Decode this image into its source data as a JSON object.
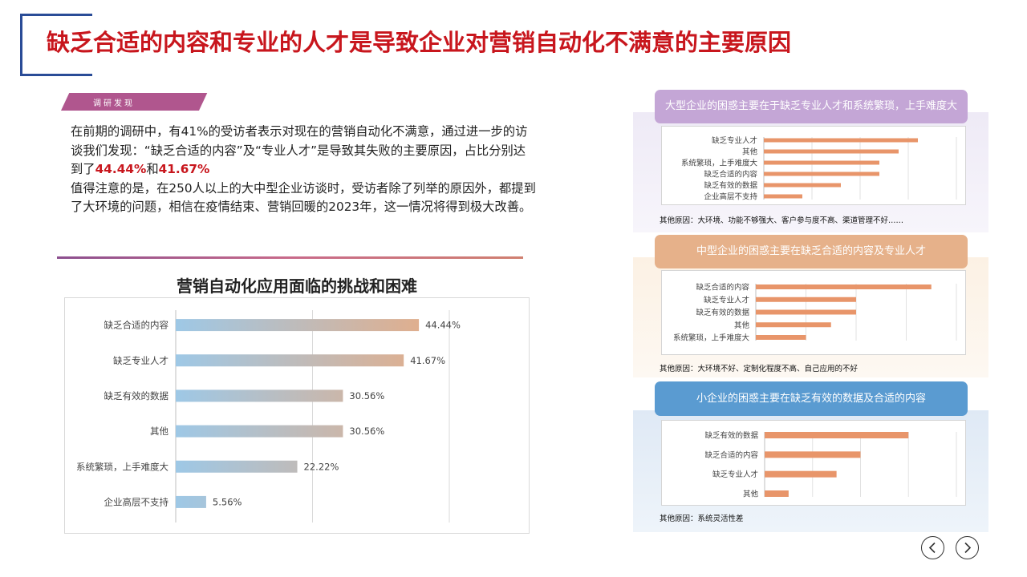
{
  "page": {
    "title": "缺乏合适的内容和专业的人才是导致企业对营销自动化不满意的主要原因",
    "tag": "调研发现"
  },
  "intro": {
    "p1_a": "在前期的调研中，有41%的受访者表示对现在的营销自动化不满意，通过进一步的访谈我们发现：“缺乏合适的内容”及“专业人才”是导致其失败的主要原因，占比分别达到了",
    "p1_v1": "44.44%",
    "p1_and": "和",
    "p1_v2": "41.67%",
    "p2": "值得注意的是，在250人以上的大中型企业访谈时，受访者除了列举的原因外，都提到了大环境的问题，相信在疫情结束、营销回暖的2023年，这一情况将得到极大改善。"
  },
  "chart_data": [
    {
      "type": "bar",
      "orientation": "horizontal",
      "title": "营销自动化应用面临的挑战和困难",
      "categories": [
        "缺乏合适的内容",
        "缺乏专业人才",
        "缺乏有效的数据",
        "其他",
        "系统繁琐，上手难度大",
        "企业高层不支持"
      ],
      "values": [
        44.44,
        41.67,
        30.56,
        30.56,
        22.22,
        5.56
      ],
      "value_labels": [
        "44.44%",
        "41.67%",
        "30.56%",
        "30.56%",
        "22.22%",
        "5.56%"
      ],
      "xlim": [
        0,
        50
      ],
      "grid": true,
      "colors": {
        "start": "#9ec8e6",
        "end": "#f0a878"
      }
    },
    {
      "type": "bar",
      "orientation": "horizontal",
      "title": "大型企业的困惑主要在于缺乏专业人才和系统繁琐，上手难度大",
      "categories": [
        "缺乏专业人才",
        "其他",
        "系统繁琐，上手难度大",
        "缺乏合适的内容",
        "缺乏有效的数据",
        "企业高层不支持"
      ],
      "values": [
        8,
        7,
        6,
        6,
        4,
        2
      ],
      "xlim": [
        0,
        10
      ],
      "grid": true,
      "note": "其他原因：大环境、功能不够强大、客户参与度不高、渠道管理不好……",
      "colors": {
        "head": "#c7a8d8",
        "bg": "#eeeaf6",
        "bar": "#e8956a"
      }
    },
    {
      "type": "bar",
      "orientation": "horizontal",
      "title": "中型企业的困惑主要在缺乏合适的内容及专业人才",
      "categories": [
        "缺乏合适的内容",
        "缺乏专业人才",
        "缺乏有效的数据",
        "其他",
        "系统繁琐，上手难度大"
      ],
      "values": [
        7,
        4,
        4,
        3,
        2
      ],
      "xlim": [
        0,
        8
      ],
      "grid": true,
      "note": "其他原因：大环境不好、定制化程度不高、自己应用的不好",
      "colors": {
        "head": "#e8b48e",
        "bg": "#fcf3e8",
        "bar": "#e8956a"
      }
    },
    {
      "type": "bar",
      "orientation": "horizontal",
      "title": "小企业的困惑主要在缺乏有效的数据及合适的内容",
      "categories": [
        "缺乏有效的数据",
        "缺乏合适的内容",
        "缺乏专业人才",
        "其他"
      ],
      "values": [
        6,
        4,
        3,
        1
      ],
      "xlim": [
        0,
        8
      ],
      "grid": true,
      "note": "其他原因：系统灵活性差",
      "colors": {
        "head": "#5b9bd0",
        "bg": "#e6eff8",
        "bar": "#e8956a"
      }
    }
  ]
}
